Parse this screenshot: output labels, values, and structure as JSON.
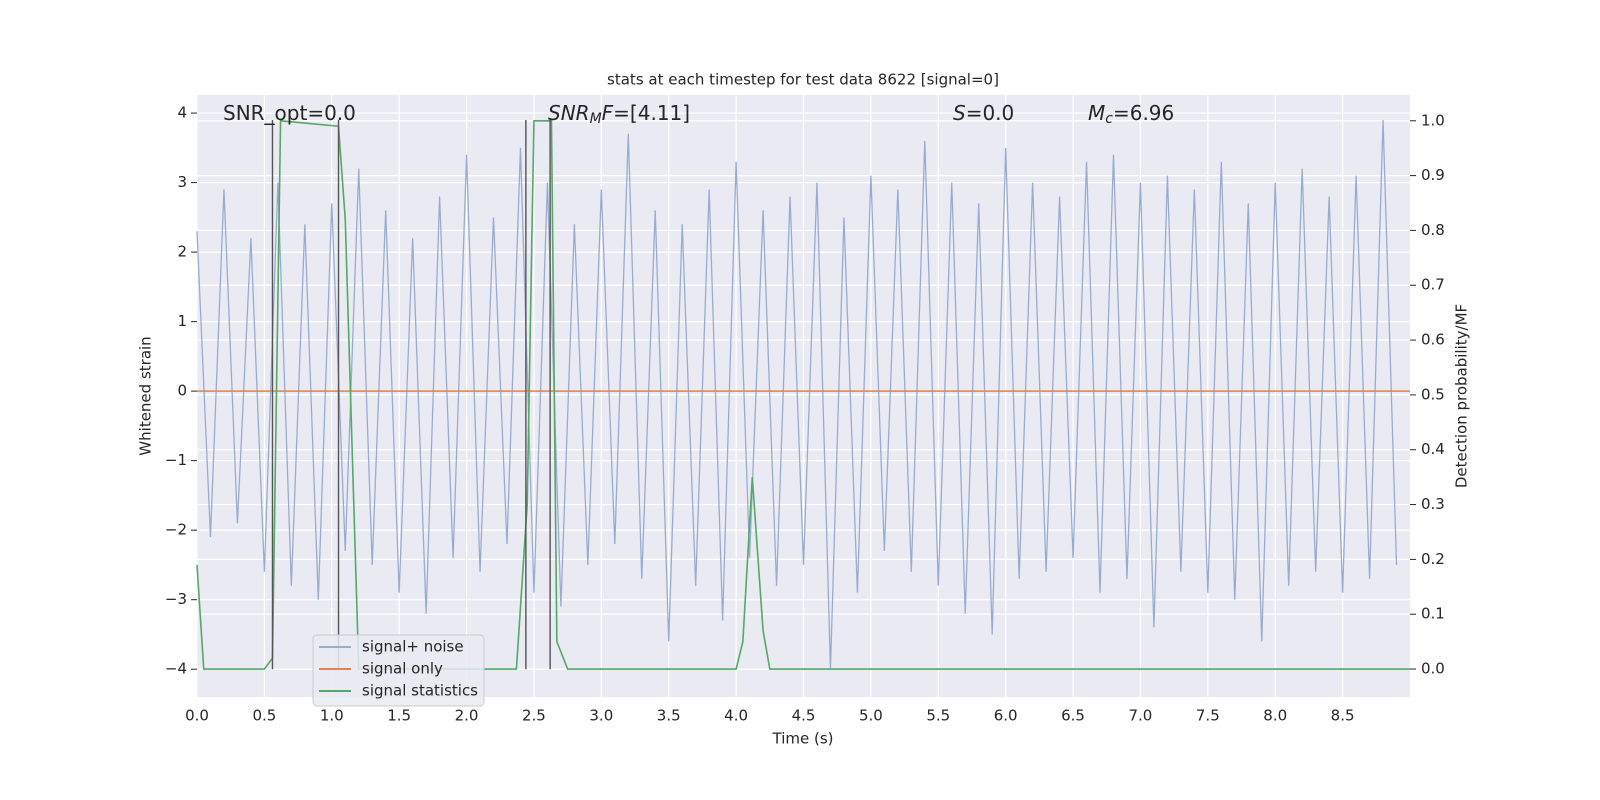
{
  "chart_data": {
    "type": "line",
    "title": "stats at each timestep for test data 8622 [signal=0]",
    "xlabel": "Time (s)",
    "ylabel": "Whitened strain",
    "y2label": "Detection probability/MF",
    "xlim": [
      0,
      9.0
    ],
    "ylim": [
      -4.4,
      4.26
    ],
    "y2lim": [
      -0.051,
      1.047
    ],
    "xticks": [
      {
        "value": 0,
        "label": "0.0"
      },
      {
        "value": 0.5,
        "label": "0.5"
      },
      {
        "value": 1,
        "label": "1.0"
      },
      {
        "value": 1.5,
        "label": "1.5"
      },
      {
        "value": 2,
        "label": "2.0"
      },
      {
        "value": 2.5,
        "label": "2.5"
      },
      {
        "value": 3,
        "label": "3.0"
      },
      {
        "value": 3.5,
        "label": "3.5"
      },
      {
        "value": 4,
        "label": "4.0"
      },
      {
        "value": 4.5,
        "label": "4.5"
      },
      {
        "value": 5,
        "label": "5.0"
      },
      {
        "value": 5.5,
        "label": "5.5"
      },
      {
        "value": 6,
        "label": "6.0"
      },
      {
        "value": 6.5,
        "label": "6.5"
      },
      {
        "value": 7,
        "label": "7.0"
      },
      {
        "value": 7.5,
        "label": "7.5"
      },
      {
        "value": 8,
        "label": "8.0"
      },
      {
        "value": 8.5,
        "label": "8.5"
      }
    ],
    "yticks": [
      {
        "value": -4,
        "label": "−4"
      },
      {
        "value": -3,
        "label": "−3"
      },
      {
        "value": -2,
        "label": "−2"
      },
      {
        "value": -1,
        "label": "−1"
      },
      0,
      1,
      2,
      3,
      4
    ],
    "y2ticks": [
      {
        "value": 0,
        "label": "0.0"
      },
      {
        "value": 0.1,
        "label": "0.1"
      },
      {
        "value": 0.2,
        "label": "0.2"
      },
      {
        "value": 0.3,
        "label": "0.3"
      },
      {
        "value": 0.4,
        "label": "0.4"
      },
      {
        "value": 0.5,
        "label": "0.5"
      },
      {
        "value": 0.6,
        "label": "0.6"
      },
      {
        "value": 0.7,
        "label": "0.7"
      },
      {
        "value": 0.8,
        "label": "0.8"
      },
      {
        "value": 0.9,
        "label": "0.9"
      },
      {
        "value": 1,
        "label": "1.0"
      }
    ],
    "grid": true,
    "legend": "lower left",
    "series": [
      {
        "name": "signal+ noise",
        "color": "#9aabd0",
        "x": [
          0,
          0.1,
          0.2,
          0.3,
          0.4,
          0.5,
          0.6,
          0.7,
          0.8,
          0.9,
          1,
          1.1,
          1.2,
          1.3,
          1.4,
          1.5,
          1.6,
          1.7,
          1.8,
          1.9,
          2,
          2.1,
          2.2,
          2.3,
          2.4,
          2.5,
          2.6,
          2.7,
          2.8,
          2.9,
          3,
          3.1,
          3.2,
          3.3,
          3.4,
          3.5,
          3.6,
          3.7,
          3.8,
          3.9,
          4,
          4.1,
          4.2,
          4.3,
          4.4,
          4.5,
          4.6,
          4.7,
          4.8,
          4.9,
          5,
          5.1,
          5.2,
          5.3,
          5.4,
          5.5,
          5.6,
          5.7,
          5.8,
          5.9,
          6,
          6.1,
          6.2,
          6.3,
          6.4,
          6.5,
          6.6,
          6.7,
          6.8,
          6.9,
          7,
          7.1,
          7.2,
          7.3,
          7.4,
          7.5,
          7.6,
          7.7,
          7.8,
          7.9,
          8,
          8.1,
          8.2,
          8.3,
          8.4,
          8.5,
          8.6,
          8.7,
          8.8,
          8.9
        ],
        "values": [
          2.3,
          -2.1,
          2.9,
          -1.9,
          2.2,
          -2.6,
          3.0,
          -2.8,
          2.4,
          -3.0,
          2.7,
          -2.3,
          3.2,
          -2.5,
          2.6,
          -2.9,
          2.2,
          -3.2,
          2.8,
          -2.4,
          3.4,
          -2.6,
          2.5,
          -2.2,
          3.5,
          -2.9,
          3.0,
          -3.1,
          2.4,
          -2.5,
          2.9,
          -2.2,
          3.7,
          -2.7,
          2.6,
          -3.6,
          2.4,
          -2.8,
          2.9,
          -3.3,
          3.3,
          -2.4,
          2.6,
          -2.8,
          2.8,
          -2.5,
          3.0,
          -4.0,
          2.5,
          -2.9,
          3.1,
          -2.3,
          2.9,
          -2.6,
          3.6,
          -2.8,
          3.0,
          -3.2,
          2.7,
          -3.5,
          3.5,
          -2.7,
          3.0,
          -2.6,
          2.8,
          -2.4,
          3.3,
          -2.9,
          3.4,
          -2.7,
          3.0,
          -3.4,
          3.1,
          -2.6,
          2.9,
          -2.9,
          3.3,
          -3.0,
          2.7,
          -3.6,
          3.0,
          -2.8,
          3.2,
          -2.6,
          2.8,
          -2.9,
          3.1,
          -2.7,
          3.9,
          -2.5
        ]
      },
      {
        "name": "signal only",
        "color": "#dd8452",
        "x": [
          0,
          9.0
        ],
        "values": [
          0,
          0
        ]
      },
      {
        "name": "signal statistics",
        "color": "#55a868",
        "axis": "y2",
        "x": [
          0,
          0.05,
          0.1,
          0.5,
          0.56,
          0.62,
          1.05,
          1.1,
          1.2,
          2.37,
          2.45,
          2.5,
          2.63,
          2.67,
          2.75,
          3.25,
          3.3,
          4.0,
          4.05,
          4.12,
          4.2,
          4.25,
          4.85,
          4.9,
          9.0
        ],
        "values": [
          0.19,
          0.0,
          0.0,
          0.0,
          0.02,
          1.0,
          0.99,
          0.82,
          0.0,
          0.0,
          0.3,
          1.0,
          1.0,
          0.05,
          0.0,
          0.0,
          0.0,
          0.0,
          0.05,
          0.35,
          0.07,
          0.0,
          0.0,
          0.0,
          0.0
        ]
      }
    ],
    "markers": {
      "color": "#555555",
      "x": [
        0.56,
        1.05,
        2.44,
        2.62
      ],
      "ymin": -4,
      "ymax": 3.9
    },
    "annotations": [
      {
        "parts": [
          {
            "text": "SNR_opt=0.0"
          }
        ]
      },
      {
        "parts": [
          {
            "text": "SNR",
            "italic": true
          },
          {
            "text": "M",
            "italic": true,
            "sub": true
          },
          {
            "text": "F",
            "italic": true
          },
          {
            "text": "=[4.11]"
          }
        ]
      },
      {
        "parts": [
          {
            "text": "S",
            "italic": true
          },
          {
            "text": "=0.0"
          }
        ]
      },
      {
        "parts": [
          {
            "text": "M",
            "italic": true
          },
          {
            "text": "c",
            "italic": true,
            "sub": true
          },
          {
            "text": "=6.96"
          }
        ]
      }
    ]
  }
}
